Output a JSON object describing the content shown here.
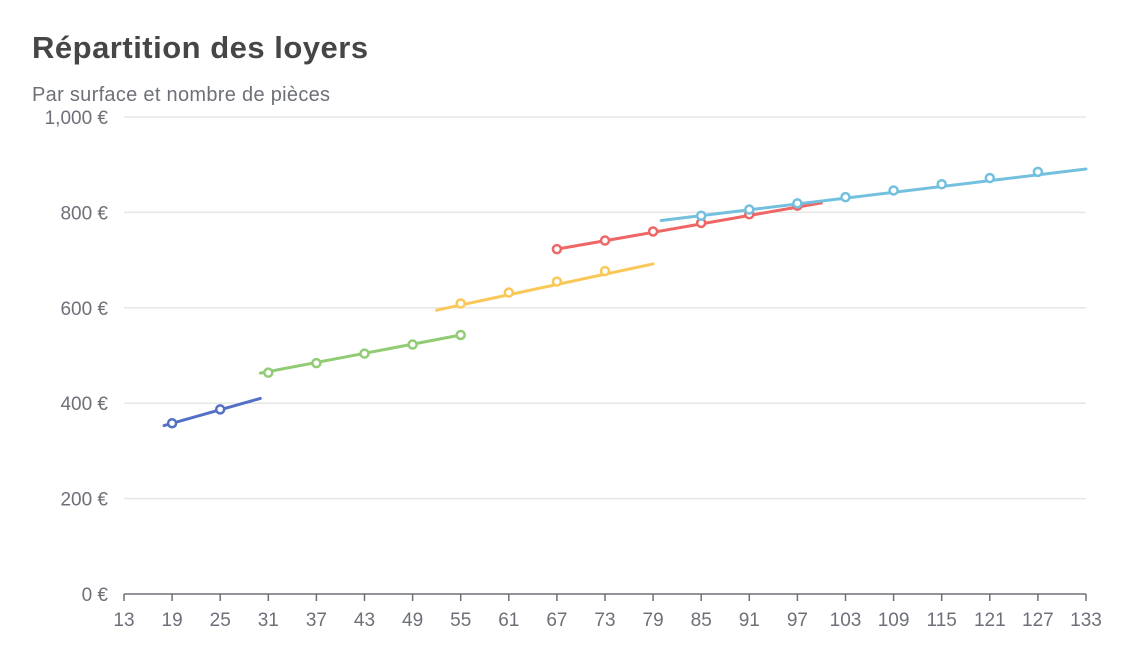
{
  "title": "Répartition des loyers",
  "subtitle": "Par surface et nombre de pièces",
  "colors": {
    "axis": "#6e7079",
    "grid": "#e6e6e6",
    "series": [
      "#5470c6",
      "#91cc75",
      "#fac858",
      "#ee6666",
      "#73c0de"
    ]
  },
  "chart_data": {
    "type": "line",
    "title": "Répartition des loyers",
    "subtitle": "Par surface et nombre de pièces",
    "xlabel": "",
    "ylabel": "",
    "xlim": [
      13,
      133
    ],
    "ylim": [
      0,
      1000
    ],
    "x_ticks": [
      "13",
      "19",
      "25",
      "31",
      "37",
      "43",
      "49",
      "55",
      "61",
      "67",
      "73",
      "79",
      "85",
      "91",
      "97",
      "103",
      "109",
      "115",
      "121",
      "127",
      "133"
    ],
    "y_ticks": [
      "0 €",
      "200 €",
      "400 €",
      "600 €",
      "800 €",
      "1,000 €"
    ],
    "grid": "horizontal",
    "series": [
      {
        "line": [
          [
            18,
            353
          ],
          [
            30,
            410
          ]
        ],
        "points": [
          [
            19,
            358
          ],
          [
            25,
            387
          ]
        ]
      },
      {
        "line": [
          [
            30,
            463
          ],
          [
            55,
            543
          ]
        ],
        "points": [
          [
            31,
            464
          ],
          [
            37,
            484
          ],
          [
            43,
            504
          ],
          [
            49,
            523
          ],
          [
            55,
            543
          ]
        ]
      },
      {
        "line": [
          [
            52,
            595
          ],
          [
            79,
            692
          ]
        ],
        "points": [
          [
            55,
            609
          ],
          [
            61,
            632
          ],
          [
            67,
            655
          ],
          [
            73,
            677
          ]
        ]
      },
      {
        "line": [
          [
            67,
            723
          ],
          [
            100,
            820
          ]
        ],
        "points": [
          [
            67,
            723
          ],
          [
            73,
            741
          ],
          [
            79,
            760
          ],
          [
            85,
            778
          ],
          [
            91,
            796
          ],
          [
            97,
            814
          ]
        ]
      },
      {
        "line": [
          [
            80,
            783
          ],
          [
            133,
            891
          ]
        ],
        "points": [
          [
            85,
            793
          ],
          [
            91,
            806
          ],
          [
            97,
            819
          ],
          [
            103,
            832
          ],
          [
            109,
            846
          ],
          [
            115,
            859
          ],
          [
            121,
            872
          ],
          [
            127,
            885
          ]
        ]
      }
    ]
  }
}
